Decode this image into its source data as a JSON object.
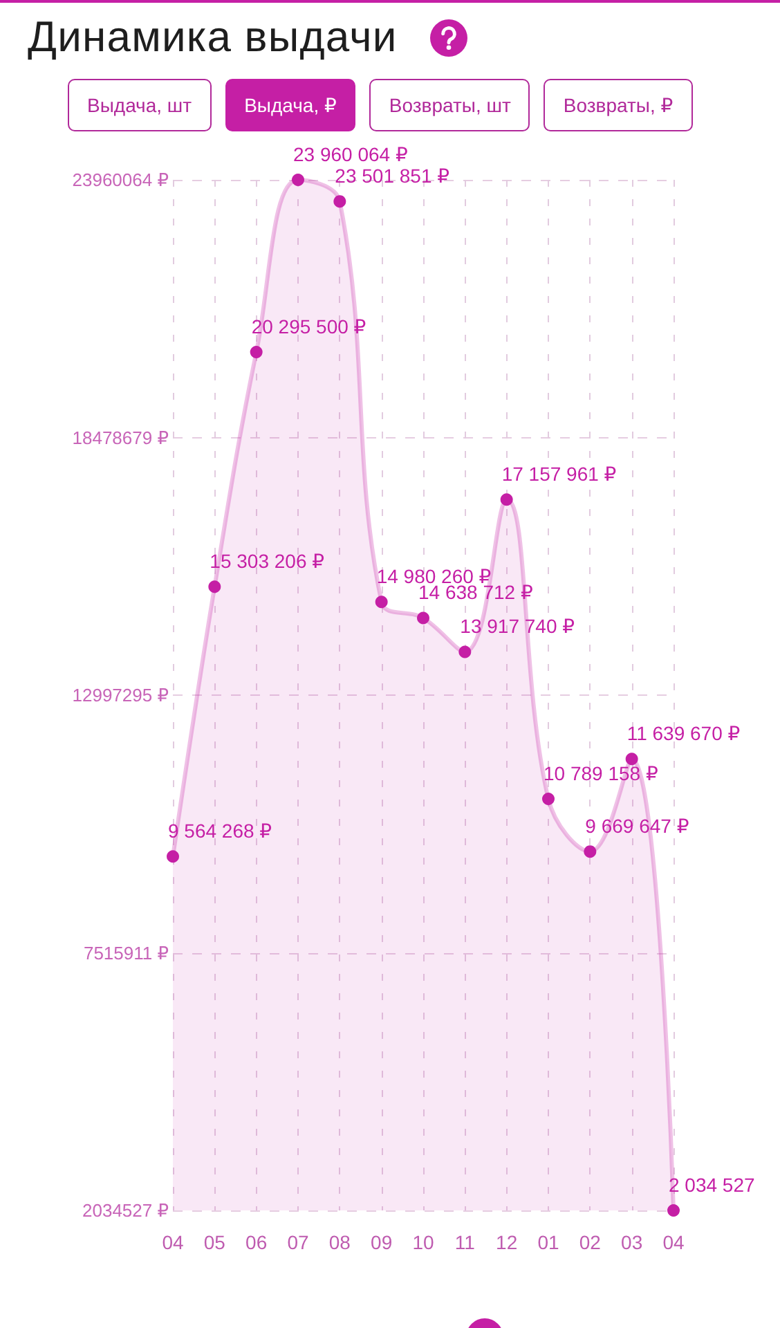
{
  "chart_data": {
    "type": "area",
    "title": "Динамика выдачи",
    "annotations": [
      "Выдача, шт",
      "Выдача, ₽",
      "Возвраты, шт",
      "Возвраты, ₽"
    ],
    "categories": [
      "04",
      "05",
      "06",
      "07",
      "08",
      "09",
      "10",
      "11",
      "12",
      "01",
      "02",
      "03",
      "04"
    ],
    "values": [
      9564268,
      15303206,
      20295500,
      23960064,
      23501851,
      14980260,
      14638712,
      13917740,
      17157961,
      10789158,
      9669647,
      11639670,
      2034527
    ],
    "value_labels": [
      "9 564 268 ₽",
      "15 303 206 ₽",
      "20 295 500 ₽",
      "23 960 064 ₽",
      "23 501 851 ₽",
      "14 980 260 ₽",
      "14 638 712 ₽",
      "13 917 740 ₽",
      "17 157 961 ₽",
      "10 789 158 ₽",
      "9 669 647 ₽",
      "11 639 670 ₽",
      "2 034 527"
    ],
    "color": "#c51fa5",
    "ylim": [
      2034527,
      23960064
    ],
    "yticks": [
      {
        "value": 2034527,
        "label": "2034527 ₽"
      },
      {
        "value": 7515911,
        "label": "7515911 ₽"
      },
      {
        "value": 12997295,
        "label": "12997295 ₽"
      },
      {
        "value": 18478679,
        "label": "18478679 ₽"
      },
      {
        "value": 23960064,
        "label": "23960064 ₽"
      }
    ],
    "grid": true,
    "marker": "circle"
  }
}
